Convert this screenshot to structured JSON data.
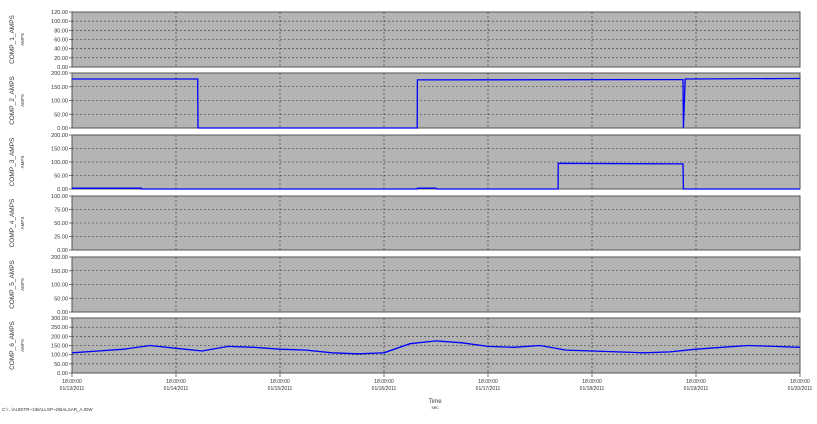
{
  "chart_data": [
    {
      "type": "line",
      "ylabel": "COMP_1_AMPS",
      "unit": "AMPS",
      "ylim": [
        0,
        120
      ],
      "yticks": [
        "0.00",
        "20.00",
        "40.00",
        "60.00",
        "80.00",
        "100.00",
        "120.00"
      ],
      "series": [
        {
          "color": "#0000ff",
          "x": [],
          "y": []
        }
      ]
    },
    {
      "type": "line",
      "ylabel": "COMP_2_AMPS",
      "unit": "AMPS",
      "ylim": [
        0,
        200
      ],
      "yticks": [
        "0.00",
        "50.00",
        "100.00",
        "150.00",
        "200.00"
      ],
      "series": [
        {
          "color": "#0000ff",
          "x": [
            "2011-01-13T18:00",
            "2011-01-14T23:00",
            "2011-01-14T23:02",
            "2011-01-14T23:05",
            "2011-01-17T01:40",
            "2011-01-17T01:42",
            "2011-01-19T15:00",
            "2011-01-19T15:05",
            "2011-01-19T15:30",
            "2011-01-20T18:00"
          ],
          "y": [
            178,
            178,
            100,
            0,
            0,
            175,
            176,
            0,
            178,
            180
          ]
        }
      ]
    },
    {
      "type": "line",
      "ylabel": "COMP_3_AMPS",
      "unit": "AMPS",
      "ylim": [
        0,
        200
      ],
      "yticks": [
        "0.00",
        "50.00",
        "100.00",
        "150.00",
        "200.00"
      ],
      "series": [
        {
          "color": "#0000ff",
          "x": [
            "2011-01-13T18:00",
            "2011-01-14T10:00",
            "2011-01-14T10:05",
            "2011-01-17T01:40",
            "2011-01-17T01:42",
            "2011-01-17T06:00",
            "2011-01-17T06:05",
            "2011-01-18T10:10",
            "2011-01-18T10:12",
            "2011-01-19T15:00",
            "2011-01-19T15:05",
            "2011-01-20T18:00"
          ],
          "y": [
            3,
            3,
            0,
            0,
            3,
            3,
            0,
            0,
            95,
            93,
            0,
            0
          ]
        }
      ]
    },
    {
      "type": "line",
      "ylabel": "COMP_4_AMPS",
      "unit": "AMPS",
      "ylim": [
        0,
        100
      ],
      "yticks": [
        "0.00",
        "25.00",
        "50.00",
        "75.00",
        "100.00"
      ],
      "series": [
        {
          "color": "#0000ff",
          "x": [],
          "y": []
        }
      ]
    },
    {
      "type": "line",
      "ylabel": "COMP_5_AMPS",
      "unit": "AMPS",
      "ylim": [
        0,
        200
      ],
      "yticks": [
        "0.00",
        "50.00",
        "100.00",
        "150.00",
        "200.00"
      ],
      "series": [
        {
          "color": "#0000ff",
          "x": [],
          "y": []
        }
      ]
    },
    {
      "type": "line",
      "ylabel": "COMP_6_AMPS",
      "unit": "AMPS",
      "ylim": [
        0,
        300
      ],
      "yticks": [
        "0.00",
        "50.00",
        "100.00",
        "150.00",
        "200.00",
        "250.00",
        "300.00"
      ],
      "series": [
        {
          "color": "#0000ff",
          "x": [
            "2011-01-13T18:00",
            "2011-01-14T00:00",
            "2011-01-14T06:00",
            "2011-01-14T12:00",
            "2011-01-14T18:00",
            "2011-01-15T00:00",
            "2011-01-15T06:00",
            "2011-01-15T12:00",
            "2011-01-15T18:00",
            "2011-01-16T00:00",
            "2011-01-16T06:00",
            "2011-01-16T12:00",
            "2011-01-16T18:00",
            "2011-01-17T00:00",
            "2011-01-17T06:00",
            "2011-01-17T12:00",
            "2011-01-17T18:00",
            "2011-01-18T00:00",
            "2011-01-18T06:00",
            "2011-01-18T12:00",
            "2011-01-18T18:00",
            "2011-01-19T00:00",
            "2011-01-19T06:00",
            "2011-01-19T12:00",
            "2011-01-19T18:00",
            "2011-01-20T00:00",
            "2011-01-20T06:00",
            "2011-01-20T12:00",
            "2011-01-20T18:00"
          ],
          "y": [
            110,
            120,
            130,
            150,
            135,
            120,
            145,
            140,
            130,
            125,
            110,
            105,
            110,
            160,
            175,
            165,
            145,
            140,
            150,
            125,
            120,
            115,
            110,
            115,
            130,
            140,
            150,
            145,
            140
          ]
        }
      ]
    }
  ],
  "x_axis": {
    "label": "Time",
    "unit": "sec",
    "range": [
      "2011-01-13T18:00",
      "2011-01-20T18:00"
    ],
    "ticks": [
      {
        "time": "18:00:00",
        "date": "01/13/2011"
      },
      {
        "time": "18:00:00",
        "date": "01/14/2011"
      },
      {
        "time": "18:00:00",
        "date": "01/15/2011"
      },
      {
        "time": "18:00:00",
        "date": "01/16/2011"
      },
      {
        "time": "18:00:00",
        "date": "01/17/2011"
      },
      {
        "time": "18:00:00",
        "date": "01/18/2011"
      },
      {
        "time": "18:00:00",
        "date": "01/19/2011"
      },
      {
        "time": "18:00:00",
        "date": "01/20/2011"
      }
    ]
  },
  "grid": true,
  "colors": {
    "plot_background": "#b4b4b4",
    "line": "#0000ff"
  },
  "footer": {
    "file_path": "C:\\...\\AUDITR~1\\BALLSP~2\\BALSAR_A.IDW"
  }
}
